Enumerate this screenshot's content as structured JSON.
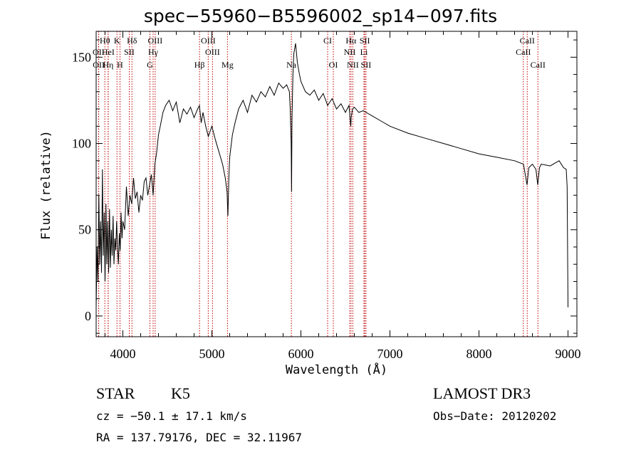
{
  "chart_data": {
    "type": "line",
    "title": "spec−55960−B5596002_sp14−097.fits",
    "xlabel": "Wavelength (Å)",
    "ylabel": "Flux (relative)",
    "xlim": [
      3700,
      9100
    ],
    "ylim": [
      -12,
      165
    ],
    "xticks": [
      4000,
      5000,
      6000,
      7000,
      8000,
      9000
    ],
    "yticks": [
      0,
      50,
      100,
      150
    ],
    "series": [
      {
        "name": "flux",
        "x": [
          3700,
          3710,
          3720,
          3730,
          3740,
          3750,
          3760,
          3770,
          3780,
          3790,
          3800,
          3810,
          3820,
          3830,
          3840,
          3850,
          3860,
          3870,
          3880,
          3890,
          3900,
          3910,
          3920,
          3930,
          3940,
          3950,
          3960,
          3970,
          3980,
          3990,
          4000,
          4020,
          4040,
          4060,
          4080,
          4100,
          4120,
          4140,
          4160,
          4180,
          4200,
          4220,
          4240,
          4260,
          4280,
          4300,
          4320,
          4340,
          4360,
          4380,
          4400,
          4420,
          4450,
          4480,
          4520,
          4560,
          4600,
          4640,
          4680,
          4720,
          4760,
          4800,
          4840,
          4860,
          4880,
          4900,
          4930,
          4960,
          5000,
          5040,
          5080,
          5120,
          5150,
          5170,
          5180,
          5190,
          5200,
          5230,
          5260,
          5300,
          5350,
          5400,
          5450,
          5500,
          5550,
          5600,
          5650,
          5700,
          5750,
          5800,
          5840,
          5870,
          5880,
          5890,
          5895,
          5900,
          5910,
          5920,
          5940,
          5960,
          5980,
          6000,
          6050,
          6100,
          6150,
          6200,
          6250,
          6300,
          6350,
          6400,
          6450,
          6500,
          6540,
          6560,
          6565,
          6580,
          6600,
          6650,
          6700,
          6800,
          6900,
          7000,
          7200,
          7400,
          7600,
          7800,
          8000,
          8200,
          8400,
          8500,
          8540,
          8560,
          8600,
          8640,
          8660,
          8680,
          8700,
          8800,
          8900,
          8950,
          8980,
          8990,
          9000
        ],
        "values": [
          5,
          40,
          20,
          70,
          30,
          55,
          25,
          85,
          35,
          60,
          20,
          65,
          30,
          55,
          25,
          62,
          28,
          50,
          35,
          58,
          30,
          45,
          38,
          55,
          40,
          30,
          48,
          38,
          60,
          45,
          55,
          50,
          75,
          58,
          70,
          65,
          80,
          68,
          72,
          60,
          70,
          67,
          78,
          80,
          70,
          76,
          82,
          70,
          88,
          95,
          105,
          110,
          118,
          122,
          125,
          119,
          124,
          112,
          120,
          117,
          121,
          115,
          120,
          122,
          112,
          118,
          110,
          104,
          110,
          102,
          95,
          88,
          80,
          72,
          58,
          80,
          92,
          105,
          112,
          120,
          125,
          118,
          128,
          124,
          130,
          127,
          133,
          128,
          135,
          132,
          134,
          130,
          120,
          100,
          72,
          115,
          140,
          152,
          158,
          147,
          141,
          136,
          130,
          128,
          131,
          125,
          129,
          122,
          126,
          120,
          123,
          118,
          122,
          110,
          115,
          120,
          121,
          118,
          119,
          116,
          113,
          110,
          106,
          103,
          100,
          97,
          94,
          92,
          90,
          88,
          76,
          86,
          88,
          85,
          76,
          86,
          88,
          87,
          90,
          86,
          85,
          75,
          5
        ]
      }
    ],
    "lines": [
      {
        "name": "Hθ",
        "x": 3798,
        "row": 0
      },
      {
        "name": "K",
        "x": 3934,
        "row": 0
      },
      {
        "name": "Hδ",
        "x": 4102,
        "row": 0
      },
      {
        "name": "OIII",
        "x": 4363,
        "row": 0
      },
      {
        "name": "OIII",
        "x": 4959,
        "row": 0
      },
      {
        "name": "CI",
        "x": 6300,
        "row": 0
      },
      {
        "name": "Hα",
        "x": 6563,
        "row": 0
      },
      {
        "name": "SII",
        "x": 6717,
        "row": 0
      },
      {
        "name": "CaII",
        "x": 8542,
        "row": 0
      },
      {
        "name": "OII",
        "x": 3727,
        "row": 1
      },
      {
        "name": "HeI",
        "x": 3835,
        "row": 1
      },
      {
        "name": "SII",
        "x": 4072,
        "row": 1
      },
      {
        "name": "Hγ",
        "x": 4340,
        "row": 1
      },
      {
        "name": "OIII",
        "x": 5007,
        "row": 1
      },
      {
        "name": "NII",
        "x": 6548,
        "row": 1
      },
      {
        "name": "Li",
        "x": 6708,
        "row": 1
      },
      {
        "name": "CaII",
        "x": 8498,
        "row": 1
      },
      {
        "name": "OII",
        "x": 3729,
        "row": 2
      },
      {
        "name": "Hη",
        "x": 3835,
        "row": 2
      },
      {
        "name": "H",
        "x": 3968,
        "row": 2
      },
      {
        "name": "G",
        "x": 4304,
        "row": 2
      },
      {
        "name": "Hβ",
        "x": 4861,
        "row": 2
      },
      {
        "name": "Mg",
        "x": 5175,
        "row": 2
      },
      {
        "name": "Na",
        "x": 5893,
        "row": 2
      },
      {
        "name": "OI",
        "x": 6364,
        "row": 2
      },
      {
        "name": "NII",
        "x": 6583,
        "row": 2
      },
      {
        "name": "SII",
        "x": 6731,
        "row": 2
      },
      {
        "name": "CaII",
        "x": 8662,
        "row": 2
      }
    ]
  },
  "info": {
    "object_class": "STAR",
    "subclass": "K5",
    "survey": "LAMOST DR3",
    "cz": "cz = −50.1 ± 17.1 km/s",
    "obs_date": "Obs−Date: 20120202",
    "coords": "RA = 137.79176, DEC =  32.11967"
  }
}
